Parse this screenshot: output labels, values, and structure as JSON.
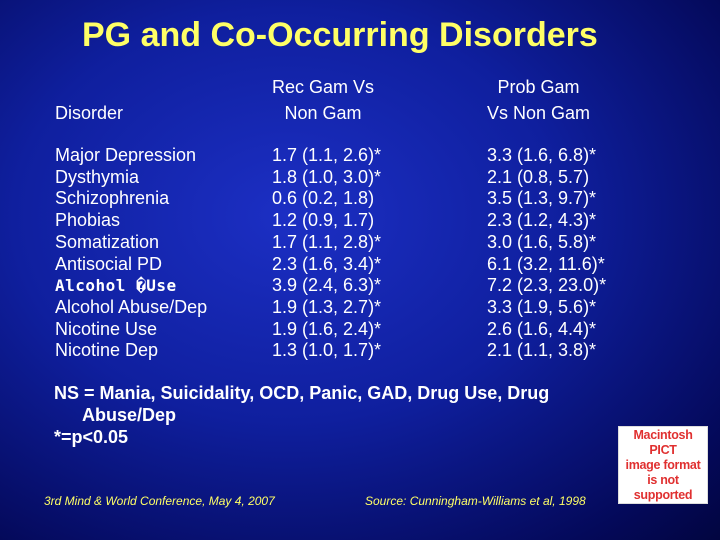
{
  "title": "PG and Co-Occurring Disorders",
  "headers": {
    "disorder": "Disorder",
    "rec_gam": "Rec Gam Vs\nNon Gam",
    "prob_gam": "Prob Gam\nVs Non Gam"
  },
  "rows": [
    {
      "disorder": "Major Depression",
      "rec": "1.7 (1.1, 2.6)*",
      "prob": "3.3 (1.6, 6.8)*"
    },
    {
      "disorder": "Dysthymia",
      "rec": "1.8 (1.0, 3.0)*",
      "prob": "2.1 (0.8, 5.7)"
    },
    {
      "disorder": "Schizophrenia",
      "rec": "0.6 (0.2, 1.8)",
      "prob": "3.5 (1.3, 9.7)*"
    },
    {
      "disorder": "Phobias",
      "rec": "1.2 (0.9, 1.7)",
      "prob": "2.3 (1.2, 4.3)*"
    },
    {
      "disorder": "Somatization",
      "rec": "1.7 (1.1, 2.8)*",
      "prob": "3.0 (1.6, 5.8)*"
    },
    {
      "disorder": "Antisocial PD",
      "rec": "2.3 (1.6, 3.4)*",
      "prob": "6.1 (3.2, 11.6)*"
    },
    {
      "disorder": "Alcohol �Use",
      "rec": "3.9 (2.4, 6.3)*",
      "prob": "7.2 (2.3, 23.0)*"
    },
    {
      "disorder": "Alcohol Abuse/Dep",
      "rec": "1.9 (1.3, 2.7)*",
      "prob": "3.3 (1.9, 5.6)*"
    },
    {
      "disorder": "Nicotine Use",
      "rec": "1.9 (1.6, 2.4)*",
      "prob": "2.6 (1.6, 4.4)*"
    },
    {
      "disorder": "Nicotine Dep",
      "rec": "1.3 (1.0, 1.7)*",
      "prob": "2.1 (1.1, 3.8)*"
    }
  ],
  "note": {
    "line1": "NS = Mania, Suicidality, OCD, Panic, GAD, Drug Use, Drug",
    "line2": "Abuse/Dep",
    "line3": "*=p<0.05"
  },
  "footer": {
    "left": "3rd Mind & World Conference, May 4, 2007",
    "right": "Source: Cunningham-Williams et al, 1998"
  },
  "pict_placeholder": "Macintosh PICT\nimage format\nis not supported",
  "colors": {
    "title": "#ffff66",
    "body_text": "#ffffff",
    "footer": "#ffff66",
    "pict_text": "#e03030"
  }
}
